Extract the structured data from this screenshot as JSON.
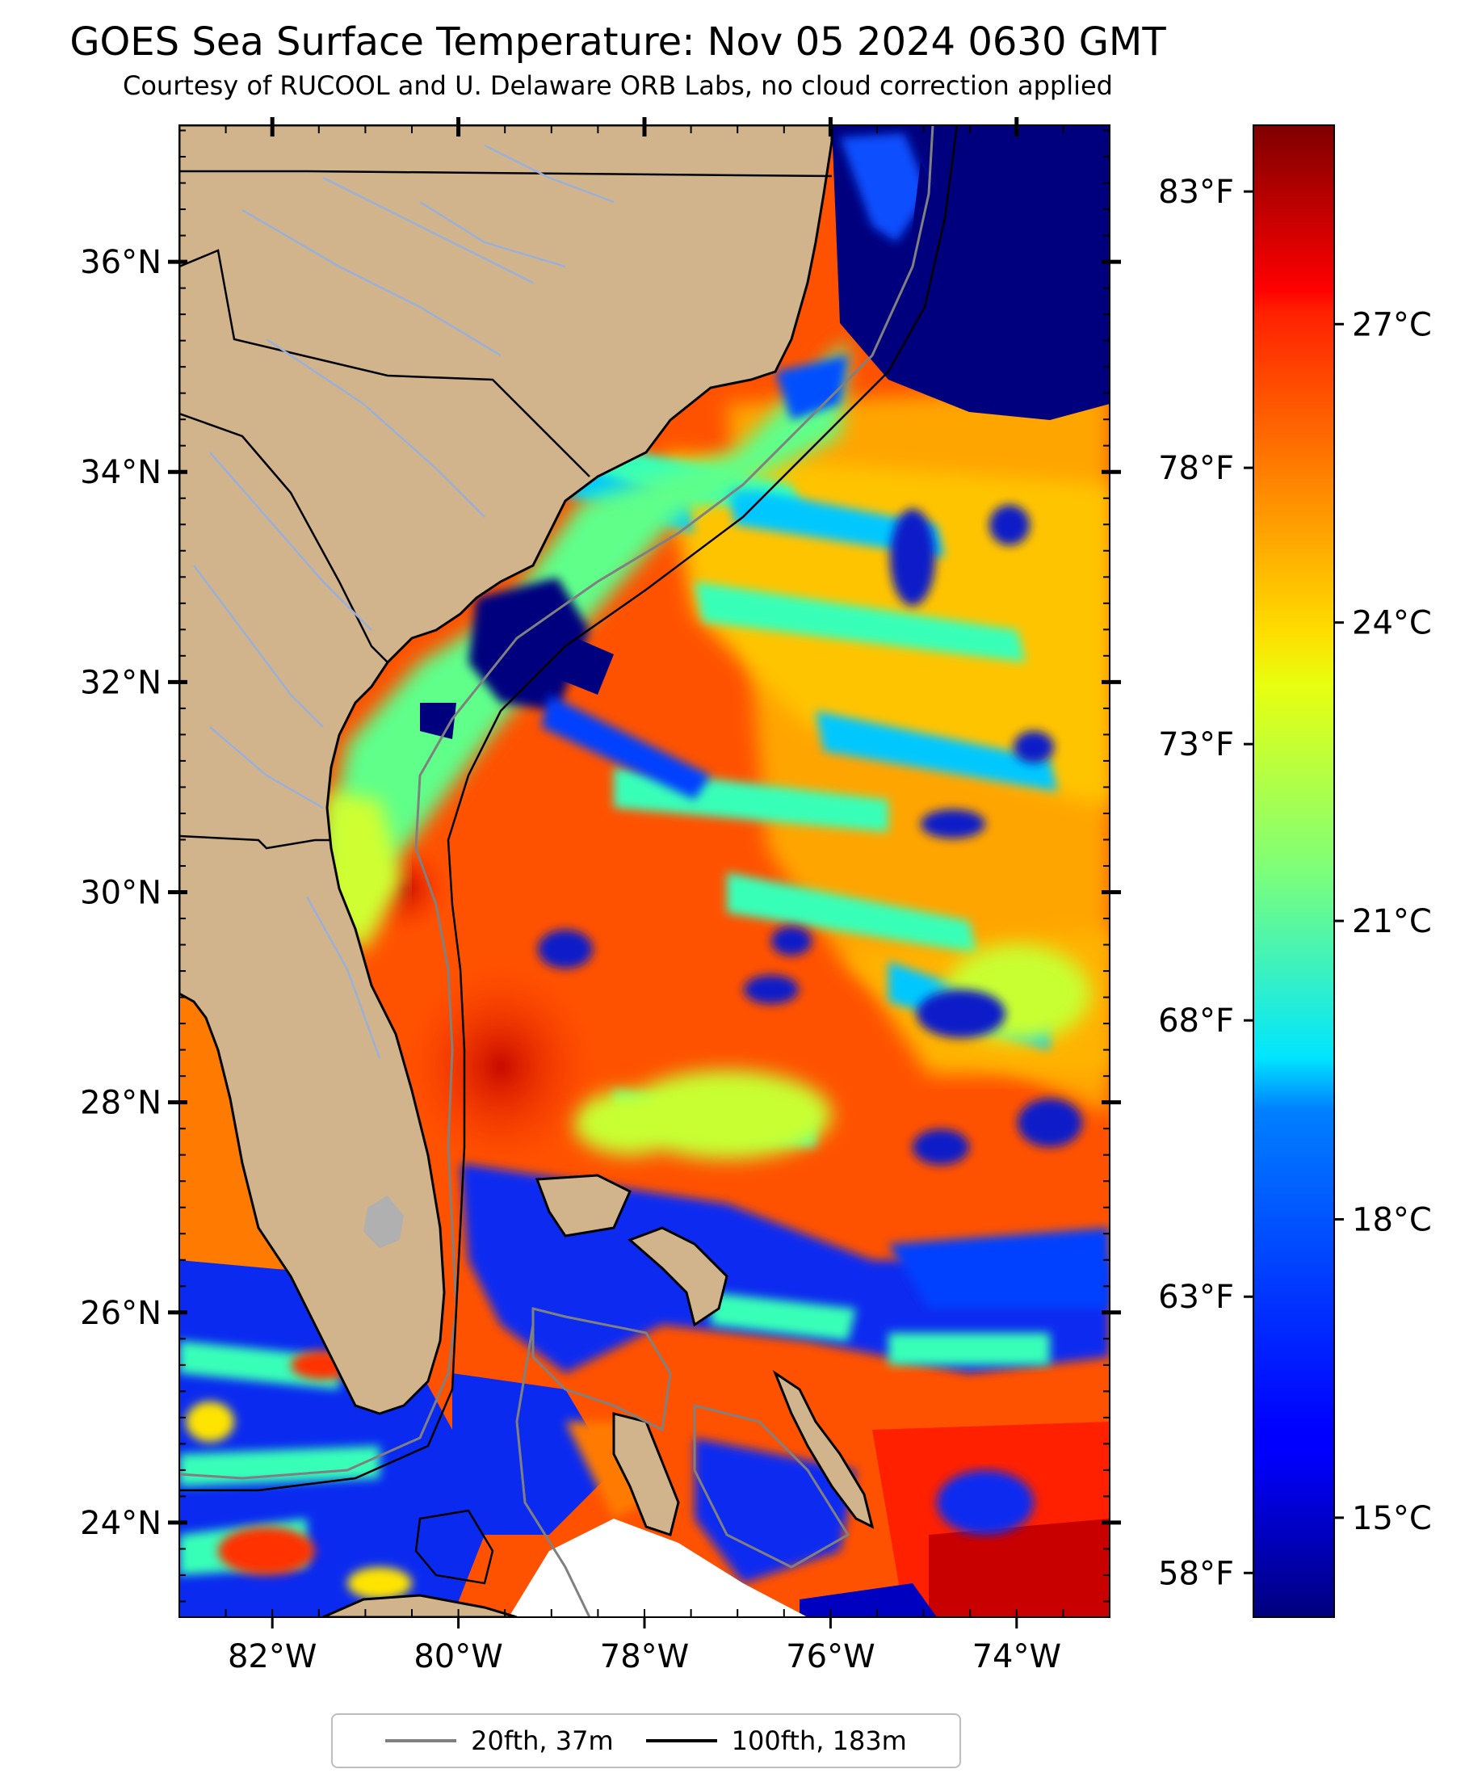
{
  "title": "GOES Sea Surface Temperature: Nov 05 2024 0630 GMT",
  "subtitle": "Courtesy of RUCOOL and U. Delaware ORB Labs, no cloud correction applied",
  "map": {
    "lon_range": [
      -83,
      -73
    ],
    "lat_range": [
      23.1,
      37.3
    ],
    "lon_ticks": [
      "82°W",
      "80°W",
      "78°W",
      "76°W",
      "74°W"
    ],
    "lon_tick_values": [
      -82,
      -80,
      -78,
      -76,
      -74
    ],
    "lat_ticks": [
      "36°N",
      "34°N",
      "32°N",
      "30°N",
      "28°N",
      "26°N",
      "24°N"
    ],
    "lat_tick_values": [
      36,
      34,
      32,
      30,
      28,
      26,
      24
    ],
    "land_color": "#d2b48c",
    "lake_color": "#b0b0b0",
    "no_data_color": "#ffffff"
  },
  "colorbar": {
    "colormap": "jet",
    "celsius_range": [
      14,
      29
    ],
    "celsius_ticks": [
      "27°C",
      "24°C",
      "21°C",
      "18°C",
      "15°C"
    ],
    "celsius_tick_values": [
      27,
      24,
      21,
      18,
      15
    ],
    "fahrenheit_ticks": [
      "83°F",
      "78°F",
      "73°F",
      "68°F",
      "63°F",
      "58°F"
    ],
    "fahrenheit_tick_values": [
      83,
      78,
      73,
      68,
      63,
      58
    ]
  },
  "legend": {
    "items": [
      {
        "label": "20fth, 37m",
        "color": "#808080"
      },
      {
        "label": "100fth, 183m",
        "color": "#000000"
      }
    ]
  }
}
